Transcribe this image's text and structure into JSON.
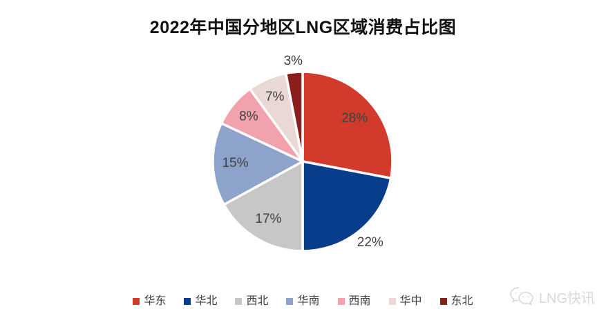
{
  "watermark": {
    "text": "LNG快讯",
    "icon": "wechat-logo",
    "color": "#d8d8d8"
  },
  "chart_data": {
    "type": "pie",
    "title": "2022年中国分地区LNG区域消费占比图",
    "unit": "%",
    "direction": "clockwise",
    "start_angle_deg": 0,
    "legend_position": "bottom",
    "label_color": "#404040",
    "background": "#ffffff",
    "slices": [
      {
        "name": "华东",
        "value": 28,
        "label": "28%",
        "color": "#d23a2b",
        "label_placement": "inside",
        "label_radius": 0.75
      },
      {
        "name": "华北",
        "value": 22,
        "label": "22%",
        "color": "#083d8c",
        "label_placement": "outside",
        "label_radius": 1.18
      },
      {
        "name": "西北",
        "value": 17,
        "label": "17%",
        "color": "#c7c7c7",
        "label_placement": "inside",
        "label_radius": 0.75
      },
      {
        "name": "华南",
        "value": 15,
        "label": "15%",
        "color": "#8da3cb",
        "label_placement": "inside",
        "label_radius": 0.75
      },
      {
        "name": "西南",
        "value": 8,
        "label": "8%",
        "color": "#f2a2ad",
        "label_placement": "inside",
        "label_radius": 0.78
      },
      {
        "name": "华中",
        "value": 7,
        "label": "7%",
        "color": "#ead8d7",
        "label_placement": "inside",
        "label_radius": 0.78
      },
      {
        "name": "东北",
        "value": 3,
        "label": "3%",
        "color": "#8b1e1a",
        "label_placement": "outside",
        "label_radius": 1.12
      }
    ]
  }
}
